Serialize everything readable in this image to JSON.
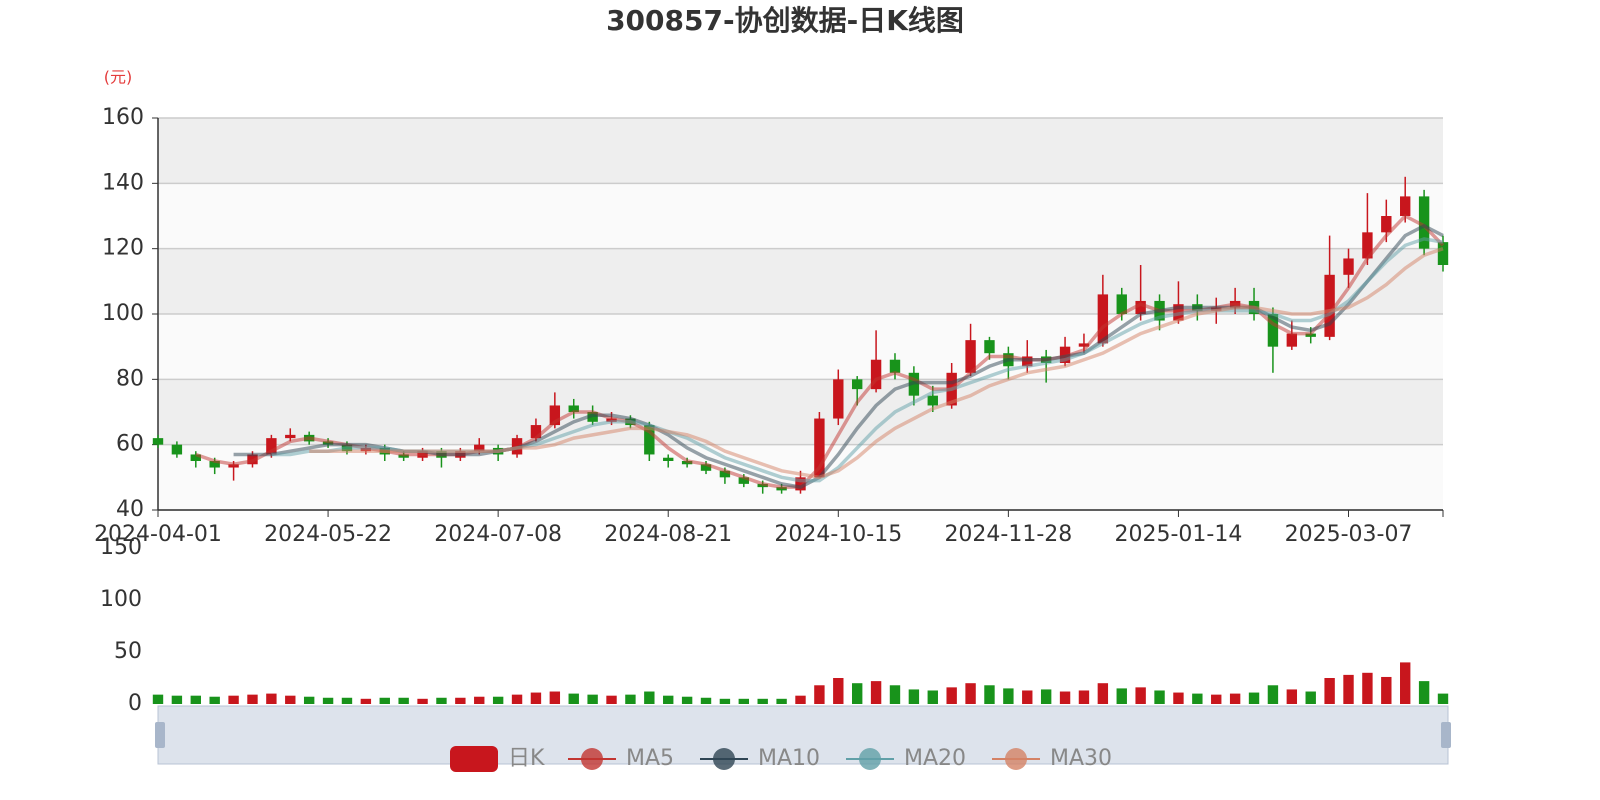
{
  "chart_data": {
    "type": "candlestick",
    "title": "300857-协创数据-日K线图",
    "unit_label": "(元)",
    "categories": [
      "2024-04-01",
      null,
      null,
      null,
      null,
      null,
      null,
      null,
      null,
      "2024-05-22",
      null,
      null,
      null,
      null,
      null,
      null,
      null,
      null,
      "2024-07-08",
      null,
      null,
      null,
      null,
      null,
      null,
      null,
      null,
      "2024-08-21",
      null,
      null,
      null,
      null,
      null,
      null,
      null,
      null,
      "2024-10-15",
      null,
      null,
      null,
      null,
      null,
      null,
      null,
      null,
      "2024-11-28",
      null,
      null,
      null,
      null,
      null,
      null,
      null,
      null,
      "2025-01-14",
      null,
      null,
      null,
      null,
      null,
      null,
      null,
      null,
      "2025-03-07",
      null,
      null,
      null,
      null,
      null
    ],
    "candle": {
      "name": "日K",
      "up_color": "#c8161d",
      "down_color": "#18931b",
      "values": [
        [
          62,
          60,
          59,
          63
        ],
        [
          60,
          57,
          56,
          61
        ],
        [
          57,
          55,
          53,
          58
        ],
        [
          55,
          53,
          51,
          56
        ],
        [
          53,
          54,
          49,
          55
        ],
        [
          54,
          57,
          53,
          58
        ],
        [
          57,
          62,
          56,
          63
        ],
        [
          62,
          63,
          61,
          65
        ],
        [
          63,
          61,
          60,
          64
        ],
        [
          61,
          60,
          59,
          62
        ],
        [
          60,
          58,
          57,
          61
        ],
        [
          58,
          59,
          57,
          60
        ],
        [
          59,
          57,
          55,
          60
        ],
        [
          57,
          56,
          55,
          58
        ],
        [
          56,
          58,
          55,
          59
        ],
        [
          58,
          56,
          53,
          59
        ],
        [
          56,
          58,
          55,
          59
        ],
        [
          58,
          60,
          57,
          62
        ],
        [
          59,
          57,
          55,
          60
        ],
        [
          57,
          62,
          56,
          63
        ],
        [
          62,
          66,
          61,
          68
        ],
        [
          66,
          72,
          65,
          76
        ],
        [
          72,
          70,
          68,
          74
        ],
        [
          70,
          67,
          66,
          72
        ],
        [
          67,
          68,
          66,
          70
        ],
        [
          68,
          66,
          65,
          69
        ],
        [
          66,
          57,
          55,
          67
        ],
        [
          56,
          55,
          53,
          57
        ],
        [
          55,
          54,
          53,
          56
        ],
        [
          54,
          52,
          51,
          55
        ],
        [
          52,
          50,
          48,
          53
        ],
        [
          50,
          48,
          47,
          51
        ],
        [
          48,
          47,
          45,
          49
        ],
        [
          47,
          46,
          45,
          48
        ],
        [
          46,
          50,
          45,
          52
        ],
        [
          50,
          68,
          50,
          70
        ],
        [
          68,
          80,
          66,
          83
        ],
        [
          80,
          77,
          72,
          81
        ],
        [
          77,
          86,
          76,
          95
        ],
        [
          86,
          82,
          80,
          88
        ],
        [
          82,
          75,
          72,
          84
        ],
        [
          75,
          72,
          70,
          78
        ],
        [
          72,
          82,
          71,
          85
        ],
        [
          82,
          92,
          81,
          97
        ],
        [
          92,
          88,
          86,
          93
        ],
        [
          88,
          84,
          80,
          90
        ],
        [
          84,
          87,
          82,
          92
        ],
        [
          87,
          85,
          79,
          89
        ],
        [
          85,
          90,
          84,
          93
        ],
        [
          90,
          91,
          88,
          94
        ],
        [
          91,
          106,
          90,
          112
        ],
        [
          106,
          100,
          98,
          108
        ],
        [
          100,
          104,
          98,
          115
        ],
        [
          104,
          98,
          95,
          106
        ],
        [
          98,
          103,
          97,
          110
        ],
        [
          103,
          101,
          98,
          106
        ],
        [
          101,
          102,
          97,
          105
        ],
        [
          102,
          104,
          100,
          108
        ],
        [
          104,
          100,
          98,
          108
        ],
        [
          100,
          90,
          82,
          102
        ],
        [
          90,
          94,
          89,
          98
        ],
        [
          94,
          93,
          91,
          96
        ],
        [
          93,
          112,
          92,
          124
        ],
        [
          112,
          117,
          108,
          120
        ],
        [
          117,
          125,
          115,
          137
        ],
        [
          125,
          130,
          122,
          135
        ],
        [
          130,
          136,
          128,
          142
        ],
        [
          136,
          120,
          118,
          138
        ],
        [
          122,
          115,
          113,
          124
        ]
      ]
    },
    "ma_series": [
      {
        "name": "MA5",
        "color": "#c23531",
        "values": [
          null,
          null,
          57,
          55,
          54,
          55,
          58,
          61,
          62,
          61,
          60,
          59,
          58,
          57,
          57,
          57,
          57,
          58,
          58,
          59,
          62,
          67,
          70,
          70,
          68,
          67,
          64,
          59,
          55,
          54,
          52,
          50,
          48,
          47,
          47,
          53,
          63,
          73,
          80,
          82,
          80,
          77,
          77,
          82,
          87,
          87,
          86,
          86,
          87,
          89,
          96,
          100,
          103,
          101,
          101,
          101,
          102,
          103,
          102,
          97,
          94,
          94,
          100,
          108,
          117,
          124,
          130,
          127,
          121
        ]
      },
      {
        "name": "MA10",
        "color": "#2f4554",
        "values": [
          null,
          null,
          null,
          null,
          57,
          57,
          57,
          58,
          59,
          60,
          60,
          60,
          59,
          58,
          58,
          57,
          57,
          57,
          58,
          59,
          61,
          64,
          67,
          69,
          69,
          68,
          66,
          63,
          59,
          56,
          54,
          52,
          50,
          48,
          47,
          50,
          57,
          65,
          72,
          77,
          79,
          79,
          79,
          81,
          84,
          86,
          86,
          86,
          87,
          88,
          92,
          96,
          100,
          101,
          102,
          102,
          102,
          102,
          102,
          99,
          96,
          95,
          97,
          103,
          110,
          117,
          124,
          127,
          124
        ]
      },
      {
        "name": "MA20",
        "color": "#61a0a8",
        "values": [
          null,
          null,
          null,
          null,
          null,
          null,
          57,
          57,
          58,
          58,
          59,
          59,
          59,
          58,
          58,
          58,
          58,
          58,
          58,
          59,
          60,
          62,
          64,
          66,
          67,
          67,
          66,
          64,
          62,
          59,
          56,
          54,
          52,
          50,
          49,
          49,
          53,
          59,
          65,
          70,
          73,
          76,
          77,
          79,
          81,
          83,
          84,
          85,
          86,
          88,
          91,
          94,
          97,
          99,
          100,
          101,
          101,
          101,
          101,
          100,
          98,
          98,
          100,
          104,
          110,
          116,
          121,
          123,
          122
        ]
      },
      {
        "name": "MA30",
        "color": "#d48265",
        "values": [
          null,
          null,
          null,
          null,
          null,
          null,
          null,
          null,
          58,
          58,
          58,
          58,
          58,
          58,
          58,
          58,
          58,
          58,
          58,
          59,
          59,
          60,
          62,
          63,
          64,
          65,
          65,
          64,
          63,
          61,
          58,
          56,
          54,
          52,
          51,
          50,
          52,
          56,
          61,
          65,
          68,
          71,
          73,
          75,
          78,
          80,
          82,
          83,
          84,
          86,
          88,
          91,
          94,
          96,
          98,
          100,
          101,
          102,
          102,
          101,
          100,
          100,
          101,
          102,
          105,
          109,
          114,
          118,
          120
        ]
      }
    ],
    "ylim": [
      40,
      160
    ],
    "yticks": [
      40,
      60,
      80,
      100,
      120,
      140,
      160
    ],
    "volume": {
      "values": [
        9,
        8,
        8,
        7,
        8,
        9,
        10,
        8,
        7,
        6,
        6,
        5,
        6,
        6,
        5,
        6,
        6,
        7,
        7,
        9,
        11,
        12,
        10,
        9,
        8,
        9,
        12,
        8,
        7,
        6,
        5,
        5,
        5,
        5,
        8,
        18,
        25,
        20,
        22,
        18,
        14,
        13,
        16,
        20,
        18,
        15,
        13,
        14,
        12,
        13,
        20,
        15,
        16,
        13,
        11,
        10,
        9,
        10,
        11,
        18,
        14,
        12,
        25,
        28,
        30,
        26,
        40,
        22,
        10
      ],
      "ylim": [
        0,
        150
      ],
      "yticks": [
        0,
        50,
        100,
        150
      ]
    }
  }
}
